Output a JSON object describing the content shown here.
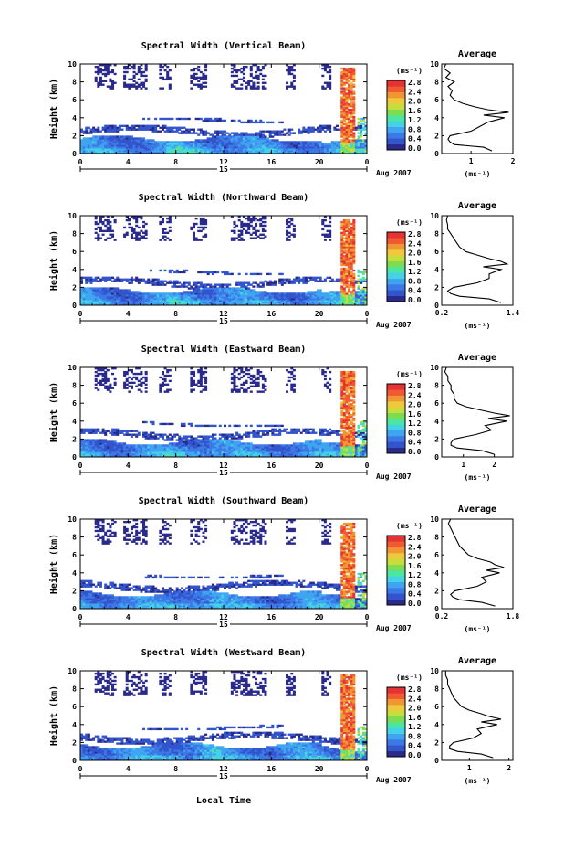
{
  "figure": {
    "x_axis_label": "Local Time",
    "date_label": "Aug 2007",
    "day_label": "15",
    "y_axis_label": "Height (km)",
    "colorbar_unit": "(ms⁻¹)",
    "colorbar_ticks": [
      "2.8",
      "2.4",
      "2.0",
      "1.6",
      "1.2",
      "0.8",
      "0.4",
      "0.0"
    ],
    "average_title": "Average",
    "average_xlabel": "(ms⁻¹)",
    "time_ticks": [
      "0",
      "4",
      "8",
      "12",
      "16",
      "20",
      "0"
    ],
    "height_ticks": [
      "0",
      "2",
      "4",
      "6",
      "8",
      "10"
    ]
  },
  "colors": {
    "palette": [
      "#2a2a8c",
      "#3355cc",
      "#3c78e6",
      "#3fa5f0",
      "#45d2e6",
      "#4be6a0",
      "#7ddc50",
      "#c8dc3c",
      "#f0c83c",
      "#f09632",
      "#f05a32",
      "#e63232"
    ]
  },
  "chart_data": [
    {
      "type": "heatmap",
      "title": "Spectral Width (Vertical Beam)",
      "xlim": [
        0,
        24
      ],
      "ylim": [
        0,
        10
      ],
      "colorbar_range": [
        0.0,
        2.8
      ],
      "average_profile": {
        "xtick_labels": [
          "1",
          "2"
        ],
        "xlim": [
          0.3,
          2.0
        ],
        "heights": [
          0.3,
          0.7,
          1.0,
          1.3,
          1.6,
          2.0,
          2.5,
          3.0,
          3.5,
          4.0,
          4.3,
          4.6,
          4.9,
          5.2,
          5.6,
          6.0,
          6.5,
          7.0,
          7.5,
          8.0,
          8.5,
          9.0,
          9.5,
          10.0
        ],
        "values": [
          1.5,
          1.3,
          0.6,
          0.5,
          0.45,
          0.5,
          1.0,
          1.2,
          1.4,
          1.8,
          1.3,
          1.9,
          1.4,
          1.1,
          0.8,
          0.6,
          0.5,
          0.55,
          0.45,
          0.6,
          0.4,
          0.5,
          0.35,
          0.4
        ]
      }
    },
    {
      "type": "heatmap",
      "title": "Spectral Width (Northward Beam)",
      "xlim": [
        0,
        24
      ],
      "ylim": [
        0,
        10
      ],
      "colorbar_range": [
        0.0,
        2.8
      ],
      "average_profile": {
        "xtick_labels": [
          "0.2",
          "1.4"
        ],
        "xlim": [
          0.2,
          1.4
        ],
        "heights": [
          0.3,
          0.7,
          1.0,
          1.3,
          1.6,
          2.0,
          2.5,
          3.0,
          3.5,
          4.0,
          4.3,
          4.6,
          4.9,
          5.2,
          5.6,
          6.0,
          6.5,
          7.0,
          7.5,
          8.0,
          8.5,
          9.0,
          9.5,
          10.0
        ],
        "values": [
          1.2,
          1.0,
          0.5,
          0.35,
          0.3,
          0.4,
          0.8,
          1.0,
          1.0,
          1.2,
          0.9,
          1.3,
          1.2,
          1.0,
          0.8,
          0.6,
          0.5,
          0.45,
          0.4,
          0.35,
          0.3,
          0.3,
          0.28,
          0.3
        ]
      }
    },
    {
      "type": "heatmap",
      "title": "Spectral Width (Eastward Beam)",
      "xlim": [
        0,
        24
      ],
      "ylim": [
        0,
        10
      ],
      "colorbar_range": [
        0.0,
        2.8
      ],
      "average_profile": {
        "xtick_labels": [
          "1",
          "2"
        ],
        "xlim": [
          0.3,
          2.6
        ],
        "heights": [
          0.3,
          0.7,
          1.0,
          1.3,
          1.6,
          2.0,
          2.5,
          3.0,
          3.5,
          4.0,
          4.3,
          4.6,
          4.9,
          5.2,
          5.6,
          6.0,
          6.5,
          7.0,
          7.5,
          8.0,
          8.5,
          9.0,
          9.5,
          10.0
        ],
        "values": [
          2.0,
          1.6,
          0.8,
          0.6,
          0.6,
          0.7,
          1.4,
          1.9,
          1.7,
          2.4,
          1.8,
          2.5,
          2.0,
          1.6,
          1.1,
          0.8,
          0.7,
          0.7,
          0.6,
          0.6,
          0.5,
          0.5,
          0.4,
          0.45
        ]
      }
    },
    {
      "type": "heatmap",
      "title": "Spectral Width (Southward Beam)",
      "xlim": [
        0,
        24
      ],
      "ylim": [
        0,
        10
      ],
      "colorbar_range": [
        0.0,
        2.8
      ],
      "average_profile": {
        "xtick_labels": [
          "0.2",
          "1.8"
        ],
        "xlim": [
          0.2,
          1.8
        ],
        "heights": [
          0.3,
          0.7,
          1.0,
          1.3,
          1.6,
          2.0,
          2.5,
          3.0,
          3.5,
          4.0,
          4.3,
          4.6,
          4.9,
          5.2,
          5.6,
          6.0,
          6.5,
          7.0,
          7.5,
          8.0,
          8.5,
          9.0,
          9.5,
          10.0
        ],
        "values": [
          1.4,
          1.1,
          0.6,
          0.45,
          0.4,
          0.5,
          1.0,
          1.2,
          1.1,
          1.5,
          1.2,
          1.6,
          1.4,
          1.3,
          1.0,
          0.8,
          0.7,
          0.6,
          0.55,
          0.5,
          0.45,
          0.4,
          0.35,
          0.4
        ]
      }
    },
    {
      "type": "heatmap",
      "title": "Spectral Width (Westward Beam)",
      "xlim": [
        0,
        24
      ],
      "ylim": [
        0,
        10
      ],
      "colorbar_range": [
        0.0,
        2.8
      ],
      "average_profile": {
        "xtick_labels": [
          "1",
          "2"
        ],
        "xlim": [
          0.3,
          2.1
        ],
        "heights": [
          0.3,
          0.7,
          1.0,
          1.3,
          1.6,
          2.0,
          2.5,
          3.0,
          3.5,
          4.0,
          4.3,
          4.6,
          4.9,
          5.2,
          5.6,
          6.0,
          6.5,
          7.0,
          7.5,
          8.0,
          8.5,
          9.0,
          9.5,
          10.0
        ],
        "values": [
          1.6,
          1.3,
          0.7,
          0.5,
          0.5,
          0.6,
          1.1,
          1.3,
          1.2,
          1.7,
          1.3,
          1.8,
          1.5,
          1.3,
          1.0,
          0.8,
          0.7,
          0.6,
          0.55,
          0.5,
          0.45,
          0.45,
          0.4,
          0.4
        ]
      }
    }
  ]
}
